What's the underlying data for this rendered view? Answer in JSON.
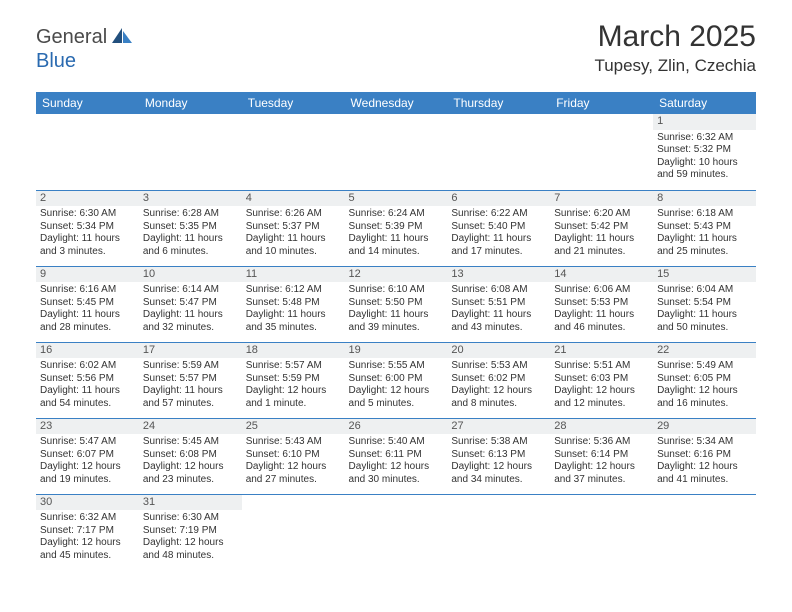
{
  "brand": {
    "general": "General",
    "blue": "Blue"
  },
  "title": "March 2025",
  "location": "Tupesy, Zlin, Czechia",
  "colors": {
    "header_bg": "#3a80c4",
    "header_fg": "#ffffff",
    "daynum_bg": "#eef0f1",
    "border": "#3a80c4",
    "text": "#333333",
    "brand_blue": "#2a6ab0"
  },
  "weekdays": [
    "Sunday",
    "Monday",
    "Tuesday",
    "Wednesday",
    "Thursday",
    "Friday",
    "Saturday"
  ],
  "weeks": [
    [
      {
        "day": "",
        "sunrise": "",
        "sunset": "",
        "daylight": ""
      },
      {
        "day": "",
        "sunrise": "",
        "sunset": "",
        "daylight": ""
      },
      {
        "day": "",
        "sunrise": "",
        "sunset": "",
        "daylight": ""
      },
      {
        "day": "",
        "sunrise": "",
        "sunset": "",
        "daylight": ""
      },
      {
        "day": "",
        "sunrise": "",
        "sunset": "",
        "daylight": ""
      },
      {
        "day": "",
        "sunrise": "",
        "sunset": "",
        "daylight": ""
      },
      {
        "day": "1",
        "sunrise": "Sunrise: 6:32 AM",
        "sunset": "Sunset: 5:32 PM",
        "daylight": "Daylight: 10 hours and 59 minutes."
      }
    ],
    [
      {
        "day": "2",
        "sunrise": "Sunrise: 6:30 AM",
        "sunset": "Sunset: 5:34 PM",
        "daylight": "Daylight: 11 hours and 3 minutes."
      },
      {
        "day": "3",
        "sunrise": "Sunrise: 6:28 AM",
        "sunset": "Sunset: 5:35 PM",
        "daylight": "Daylight: 11 hours and 6 minutes."
      },
      {
        "day": "4",
        "sunrise": "Sunrise: 6:26 AM",
        "sunset": "Sunset: 5:37 PM",
        "daylight": "Daylight: 11 hours and 10 minutes."
      },
      {
        "day": "5",
        "sunrise": "Sunrise: 6:24 AM",
        "sunset": "Sunset: 5:39 PM",
        "daylight": "Daylight: 11 hours and 14 minutes."
      },
      {
        "day": "6",
        "sunrise": "Sunrise: 6:22 AM",
        "sunset": "Sunset: 5:40 PM",
        "daylight": "Daylight: 11 hours and 17 minutes."
      },
      {
        "day": "7",
        "sunrise": "Sunrise: 6:20 AM",
        "sunset": "Sunset: 5:42 PM",
        "daylight": "Daylight: 11 hours and 21 minutes."
      },
      {
        "day": "8",
        "sunrise": "Sunrise: 6:18 AM",
        "sunset": "Sunset: 5:43 PM",
        "daylight": "Daylight: 11 hours and 25 minutes."
      }
    ],
    [
      {
        "day": "9",
        "sunrise": "Sunrise: 6:16 AM",
        "sunset": "Sunset: 5:45 PM",
        "daylight": "Daylight: 11 hours and 28 minutes."
      },
      {
        "day": "10",
        "sunrise": "Sunrise: 6:14 AM",
        "sunset": "Sunset: 5:47 PM",
        "daylight": "Daylight: 11 hours and 32 minutes."
      },
      {
        "day": "11",
        "sunrise": "Sunrise: 6:12 AM",
        "sunset": "Sunset: 5:48 PM",
        "daylight": "Daylight: 11 hours and 35 minutes."
      },
      {
        "day": "12",
        "sunrise": "Sunrise: 6:10 AM",
        "sunset": "Sunset: 5:50 PM",
        "daylight": "Daylight: 11 hours and 39 minutes."
      },
      {
        "day": "13",
        "sunrise": "Sunrise: 6:08 AM",
        "sunset": "Sunset: 5:51 PM",
        "daylight": "Daylight: 11 hours and 43 minutes."
      },
      {
        "day": "14",
        "sunrise": "Sunrise: 6:06 AM",
        "sunset": "Sunset: 5:53 PM",
        "daylight": "Daylight: 11 hours and 46 minutes."
      },
      {
        "day": "15",
        "sunrise": "Sunrise: 6:04 AM",
        "sunset": "Sunset: 5:54 PM",
        "daylight": "Daylight: 11 hours and 50 minutes."
      }
    ],
    [
      {
        "day": "16",
        "sunrise": "Sunrise: 6:02 AM",
        "sunset": "Sunset: 5:56 PM",
        "daylight": "Daylight: 11 hours and 54 minutes."
      },
      {
        "day": "17",
        "sunrise": "Sunrise: 5:59 AM",
        "sunset": "Sunset: 5:57 PM",
        "daylight": "Daylight: 11 hours and 57 minutes."
      },
      {
        "day": "18",
        "sunrise": "Sunrise: 5:57 AM",
        "sunset": "Sunset: 5:59 PM",
        "daylight": "Daylight: 12 hours and 1 minute."
      },
      {
        "day": "19",
        "sunrise": "Sunrise: 5:55 AM",
        "sunset": "Sunset: 6:00 PM",
        "daylight": "Daylight: 12 hours and 5 minutes."
      },
      {
        "day": "20",
        "sunrise": "Sunrise: 5:53 AM",
        "sunset": "Sunset: 6:02 PM",
        "daylight": "Daylight: 12 hours and 8 minutes."
      },
      {
        "day": "21",
        "sunrise": "Sunrise: 5:51 AM",
        "sunset": "Sunset: 6:03 PM",
        "daylight": "Daylight: 12 hours and 12 minutes."
      },
      {
        "day": "22",
        "sunrise": "Sunrise: 5:49 AM",
        "sunset": "Sunset: 6:05 PM",
        "daylight": "Daylight: 12 hours and 16 minutes."
      }
    ],
    [
      {
        "day": "23",
        "sunrise": "Sunrise: 5:47 AM",
        "sunset": "Sunset: 6:07 PM",
        "daylight": "Daylight: 12 hours and 19 minutes."
      },
      {
        "day": "24",
        "sunrise": "Sunrise: 5:45 AM",
        "sunset": "Sunset: 6:08 PM",
        "daylight": "Daylight: 12 hours and 23 minutes."
      },
      {
        "day": "25",
        "sunrise": "Sunrise: 5:43 AM",
        "sunset": "Sunset: 6:10 PM",
        "daylight": "Daylight: 12 hours and 27 minutes."
      },
      {
        "day": "26",
        "sunrise": "Sunrise: 5:40 AM",
        "sunset": "Sunset: 6:11 PM",
        "daylight": "Daylight: 12 hours and 30 minutes."
      },
      {
        "day": "27",
        "sunrise": "Sunrise: 5:38 AM",
        "sunset": "Sunset: 6:13 PM",
        "daylight": "Daylight: 12 hours and 34 minutes."
      },
      {
        "day": "28",
        "sunrise": "Sunrise: 5:36 AM",
        "sunset": "Sunset: 6:14 PM",
        "daylight": "Daylight: 12 hours and 37 minutes."
      },
      {
        "day": "29",
        "sunrise": "Sunrise: 5:34 AM",
        "sunset": "Sunset: 6:16 PM",
        "daylight": "Daylight: 12 hours and 41 minutes."
      }
    ],
    [
      {
        "day": "30",
        "sunrise": "Sunrise: 6:32 AM",
        "sunset": "Sunset: 7:17 PM",
        "daylight": "Daylight: 12 hours and 45 minutes."
      },
      {
        "day": "31",
        "sunrise": "Sunrise: 6:30 AM",
        "sunset": "Sunset: 7:19 PM",
        "daylight": "Daylight: 12 hours and 48 minutes."
      },
      {
        "day": "",
        "sunrise": "",
        "sunset": "",
        "daylight": ""
      },
      {
        "day": "",
        "sunrise": "",
        "sunset": "",
        "daylight": ""
      },
      {
        "day": "",
        "sunrise": "",
        "sunset": "",
        "daylight": ""
      },
      {
        "day": "",
        "sunrise": "",
        "sunset": "",
        "daylight": ""
      },
      {
        "day": "",
        "sunrise": "",
        "sunset": "",
        "daylight": ""
      }
    ]
  ]
}
